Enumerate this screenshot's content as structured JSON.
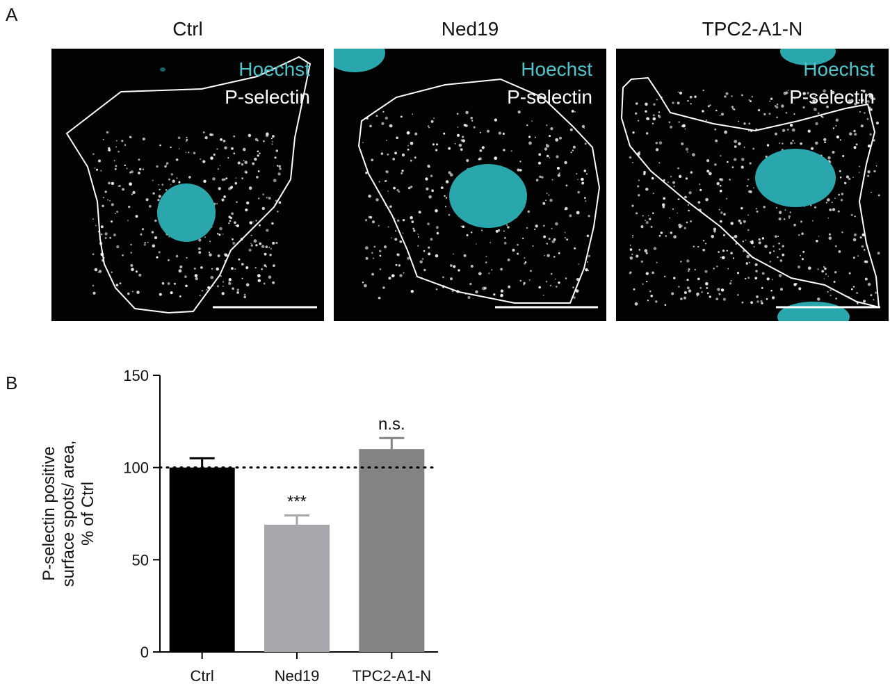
{
  "panel_labels": {
    "a": "A",
    "b": "B"
  },
  "micrographs": [
    {
      "title": "Ctrl",
      "label1": "Hoechst",
      "label2": "P-selectin"
    },
    {
      "title": "Ned19",
      "label1": "Hoechst",
      "label2": "P-selectin"
    },
    {
      "title": "TPC2-A1-N",
      "label1": "Hoechst",
      "label2": "P-selectin"
    }
  ],
  "colors": {
    "hoechst": "#4ec5cc",
    "nucleus": "#2aa7ad",
    "spot": "#f2f2f2",
    "bar_ctrl": "#000000",
    "bar_ned19": "#a7a7ab",
    "bar_tpc2": "#838383"
  },
  "chart_data": {
    "type": "bar",
    "categories": [
      "Ctrl",
      "Ned19",
      "TPC2-A1-N"
    ],
    "values": [
      100,
      69,
      110
    ],
    "errors": [
      5,
      5,
      6
    ],
    "significance": [
      "",
      "***",
      "n.s."
    ],
    "reference_line": 100,
    "ylim": [
      0,
      150
    ],
    "yticks": [
      0,
      50,
      100,
      150
    ],
    "ylabel_lines": [
      "P-selectin positive",
      "surface spots/ area,",
      "% of Ctrl"
    ],
    "xlabel": "",
    "title": "",
    "grid": false
  }
}
